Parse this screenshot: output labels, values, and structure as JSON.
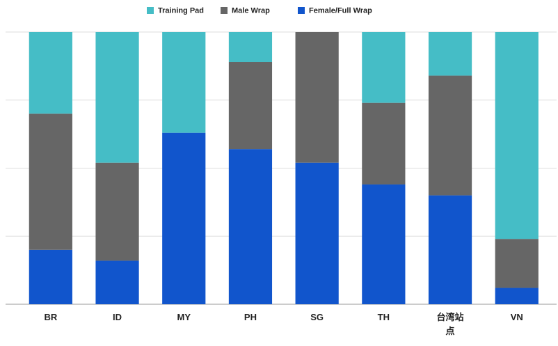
{
  "chart_data": {
    "type": "bar",
    "stacked": true,
    "categories": [
      "BR",
      "ID",
      "MY",
      "PH",
      "SG",
      "TH",
      "台湾站点",
      "VN"
    ],
    "series": [
      {
        "name": "Training Pad",
        "color": "#45bdc6",
        "values": [
          30,
          48,
          37,
          11,
          0,
          26,
          16,
          76
        ]
      },
      {
        "name": "Male Wrap",
        "color": "#666666",
        "values": [
          50,
          36,
          0,
          32,
          48,
          30,
          44,
          18
        ]
      },
      {
        "name": "Female/Full Wrap",
        "color": "#1155cc",
        "values": [
          20,
          16,
          63,
          57,
          52,
          44,
          40,
          6
        ]
      }
    ],
    "ylim": [
      0,
      100
    ],
    "yticks": [
      0,
      25,
      50,
      75,
      100
    ],
    "grid": true
  }
}
